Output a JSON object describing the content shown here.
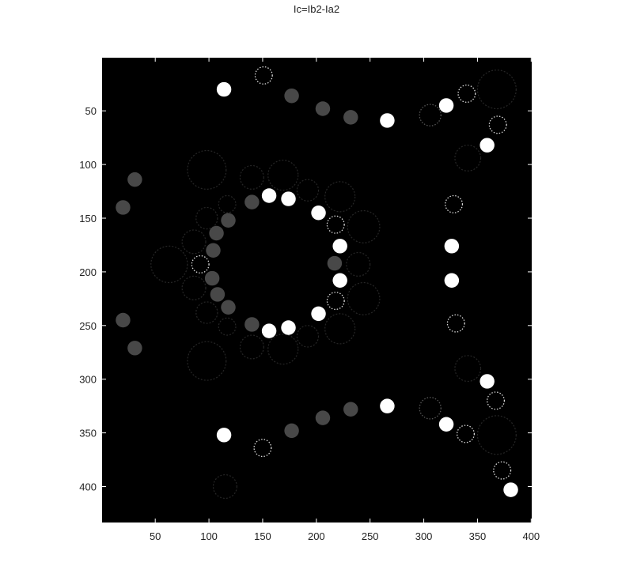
{
  "figure": {
    "title": "Ic=Ib2-Ia2",
    "background": "#000000",
    "axes_color": "#000000",
    "tick_color": "#ffffff",
    "label_color": "#222222"
  },
  "axes": {
    "x_ticks": [
      50,
      100,
      150,
      200,
      250,
      300,
      350,
      400
    ],
    "y_ticks": [
      50,
      100,
      150,
      200,
      250,
      300,
      350,
      400
    ],
    "x_range": [
      0.5,
      400.5
    ],
    "y_range": [
      0.5,
      433.5
    ],
    "y_direction": "reverse"
  },
  "image_blobs": {
    "white": [
      [
        114,
        30
      ],
      [
        266,
        59
      ],
      [
        321,
        45
      ],
      [
        359,
        82
      ],
      [
        156,
        129
      ],
      [
        174,
        132
      ],
      [
        202,
        145
      ],
      [
        222,
        176
      ],
      [
        222,
        208
      ],
      [
        326,
        176
      ],
      [
        326,
        208
      ],
      [
        202,
        239
      ],
      [
        174,
        252
      ],
      [
        156,
        255
      ],
      [
        266,
        325
      ],
      [
        359,
        302
      ],
      [
        321,
        342
      ],
      [
        114,
        352
      ],
      [
        381,
        403
      ]
    ],
    "gray": [
      [
        177,
        36
      ],
      [
        206,
        48
      ],
      [
        232,
        56
      ],
      [
        31,
        114
      ],
      [
        20,
        140
      ],
      [
        140,
        135
      ],
      [
        118,
        152
      ],
      [
        107,
        164
      ],
      [
        104,
        180
      ],
      [
        217,
        192
      ],
      [
        103,
        206
      ],
      [
        108,
        221
      ],
      [
        118,
        233
      ],
      [
        140,
        249
      ],
      [
        20,
        245
      ],
      [
        31,
        271
      ],
      [
        232,
        328
      ],
      [
        206,
        336
      ],
      [
        177,
        348
      ]
    ],
    "dotted_rings": [
      [
        151,
        17,
        8
      ],
      [
        340,
        34,
        8
      ],
      [
        369,
        63,
        8
      ],
      [
        328,
        137,
        8
      ],
      [
        218,
        156,
        8
      ],
      [
        92,
        193,
        8
      ],
      [
        218,
        227,
        8
      ],
      [
        330,
        248,
        8
      ],
      [
        367,
        320,
        8
      ],
      [
        339,
        351,
        8
      ],
      [
        150,
        364,
        8
      ],
      [
        373,
        385,
        8
      ],
      [
        306,
        54,
        10
      ],
      [
        306,
        327,
        10
      ]
    ],
    "faint_rings": [
      [
        368,
        30,
        18
      ],
      [
        341,
        94,
        12
      ],
      [
        98,
        105,
        18
      ],
      [
        140,
        112,
        11
      ],
      [
        169,
        110,
        14
      ],
      [
        192,
        124,
        10
      ],
      [
        222,
        130,
        14
      ],
      [
        117,
        137,
        8
      ],
      [
        98,
        150,
        10
      ],
      [
        244,
        158,
        15
      ],
      [
        86,
        172,
        11
      ],
      [
        63,
        193,
        17
      ],
      [
        239,
        193,
        11
      ],
      [
        86,
        215,
        11
      ],
      [
        244,
        225,
        15
      ],
      [
        98,
        238,
        10
      ],
      [
        117,
        251,
        8
      ],
      [
        140,
        270,
        11
      ],
      [
        169,
        272,
        14
      ],
      [
        192,
        260,
        10
      ],
      [
        222,
        253,
        14
      ],
      [
        98,
        283,
        18
      ],
      [
        341,
        290,
        12
      ],
      [
        368,
        352,
        18
      ],
      [
        115,
        400,
        11
      ]
    ]
  }
}
